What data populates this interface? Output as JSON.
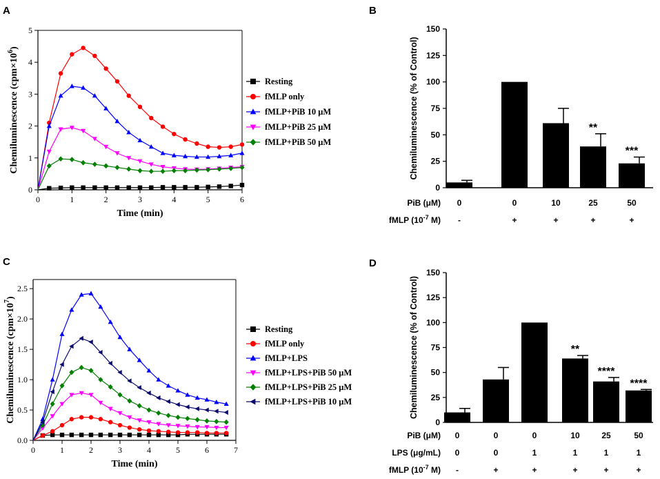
{
  "chart_data": [
    {
      "id": "A",
      "type": "line",
      "panel_label": "A",
      "title": "",
      "xlabel": "Time (min)",
      "ylabel": "Chemiluminescence (cpm×10",
      "ylabel_exp": "6",
      "ylabel_close": ")",
      "xlim": [
        0,
        6
      ],
      "ylim": [
        0,
        5
      ],
      "xticks": [
        "0",
        "1",
        "2",
        "3",
        "4",
        "5",
        "6"
      ],
      "xtick_values": [
        0,
        1,
        2,
        3,
        4,
        5,
        6
      ],
      "yticks": [
        "0",
        "1",
        "2",
        "3",
        "4",
        "5"
      ],
      "ytick_values": [
        0,
        1,
        2,
        3,
        4,
        5
      ],
      "x": [
        0,
        0.33,
        0.67,
        1.0,
        1.33,
        1.67,
        2.0,
        2.33,
        2.67,
        3.0,
        3.33,
        3.67,
        4.0,
        4.33,
        4.67,
        5.0,
        5.33,
        5.67,
        6.0
      ],
      "series": [
        {
          "name": "Resting",
          "color": "#000000",
          "marker": "square",
          "values": [
            0.0,
            0.05,
            0.06,
            0.07,
            0.07,
            0.07,
            0.07,
            0.07,
            0.07,
            0.07,
            0.07,
            0.08,
            0.08,
            0.08,
            0.08,
            0.09,
            0.1,
            0.12,
            0.15
          ]
        },
        {
          "name": "fMLP only",
          "color": "#ff0000",
          "marker": "circle",
          "values": [
            0.0,
            2.1,
            3.65,
            4.25,
            4.45,
            4.2,
            3.8,
            3.4,
            2.95,
            2.6,
            2.25,
            1.98,
            1.75,
            1.58,
            1.45,
            1.35,
            1.33,
            1.35,
            1.42
          ]
        },
        {
          "name": "fMLP+PiB 10 μM",
          "color": "#0000ff",
          "marker": "triangle-up",
          "values": [
            0.0,
            2.0,
            2.95,
            3.25,
            3.2,
            2.95,
            2.55,
            2.15,
            1.8,
            1.55,
            1.35,
            1.15,
            1.08,
            1.05,
            1.03,
            1.03,
            1.05,
            1.08,
            1.15
          ]
        },
        {
          "name": "fMLP+PiB 25 μM",
          "color": "#ff00ff",
          "marker": "triangle-down",
          "values": [
            0.0,
            1.2,
            1.9,
            1.95,
            1.85,
            1.6,
            1.35,
            1.15,
            1.0,
            0.9,
            0.8,
            0.72,
            0.68,
            0.65,
            0.64,
            0.65,
            0.67,
            0.7,
            0.72
          ]
        },
        {
          "name": "fMLP+PiB 50 μM",
          "color": "#008000",
          "marker": "diamond",
          "values": [
            0.0,
            0.75,
            0.97,
            0.95,
            0.85,
            0.8,
            0.75,
            0.7,
            0.65,
            0.6,
            0.58,
            0.58,
            0.6,
            0.6,
            0.62,
            0.63,
            0.65,
            0.67,
            0.7
          ]
        }
      ]
    },
    {
      "id": "B",
      "type": "bar",
      "panel_label": "B",
      "title": "",
      "xlabel": "",
      "ylabel": "Chemiluminescence (% of Control)",
      "ylim": [
        0,
        150
      ],
      "yticks": [
        "0",
        "25",
        "50",
        "75",
        "100",
        "125",
        "150"
      ],
      "ytick_values": [
        0,
        25,
        50,
        75,
        100,
        125,
        150
      ],
      "values": [
        5,
        100,
        61,
        39,
        23
      ],
      "errors": [
        2,
        0,
        14,
        12,
        6
      ],
      "significance": [
        "",
        "",
        "",
        "**",
        "***"
      ],
      "table_rows": [
        {
          "label": "PiB (μM)",
          "cells": [
            "0",
            "0",
            "10",
            "25",
            "50"
          ]
        },
        {
          "label": "fMLP (10",
          "label_exp": "-7",
          "label_tail": " M)",
          "cells": [
            "-",
            "+",
            "+",
            "+",
            "+"
          ]
        }
      ]
    },
    {
      "id": "C",
      "type": "line",
      "panel_label": "C",
      "title": "",
      "xlabel": "Time (min)",
      "ylabel": "Chemiluminescence (cpm×10",
      "ylabel_exp": "7",
      "ylabel_close": ")",
      "xlim": [
        0,
        7
      ],
      "ylim": [
        0,
        2.65
      ],
      "xticks": [
        "0",
        "1",
        "2",
        "3",
        "4",
        "5",
        "6",
        "7"
      ],
      "xtick_values": [
        0,
        1,
        2,
        3,
        4,
        5,
        6,
        7
      ],
      "yticks": [
        "0.0",
        "0.5",
        "1.0",
        "1.5",
        "2.0",
        "2.5"
      ],
      "ytick_values": [
        0,
        0.5,
        1.0,
        1.5,
        2.0,
        2.5
      ],
      "x": [
        0,
        0.33,
        0.67,
        1.0,
        1.33,
        1.67,
        2.0,
        2.33,
        2.67,
        3.0,
        3.33,
        3.67,
        4.0,
        4.33,
        4.67,
        5.0,
        5.33,
        5.67,
        6.0,
        6.33,
        6.67
      ],
      "series": [
        {
          "name": "Resting",
          "color": "#000000",
          "marker": "square",
          "values": [
            0.0,
            0.08,
            0.09,
            0.09,
            0.09,
            0.09,
            0.09,
            0.09,
            0.09,
            0.09,
            0.09,
            0.09,
            0.09,
            0.09,
            0.09,
            0.09,
            0.1,
            0.1,
            0.1,
            0.1,
            0.1
          ]
        },
        {
          "name": "fMLP only",
          "color": "#ff0000",
          "marker": "circle",
          "values": [
            0.0,
            0.08,
            0.15,
            0.25,
            0.35,
            0.38,
            0.38,
            0.35,
            0.3,
            0.25,
            0.21,
            0.18,
            0.16,
            0.15,
            0.14,
            0.13,
            0.13,
            0.13,
            0.12,
            0.12,
            0.12
          ]
        },
        {
          "name": "fMLP+LPS",
          "color": "#0000ff",
          "marker": "triangle-up",
          "values": [
            0.0,
            0.35,
            1.0,
            1.75,
            2.15,
            2.4,
            2.42,
            2.2,
            1.95,
            1.7,
            1.5,
            1.32,
            1.15,
            1.0,
            0.9,
            0.82,
            0.75,
            0.7,
            0.67,
            0.63,
            0.6
          ]
        },
        {
          "name": "fMLP+LPS+PiB 50 μM",
          "color": "#ff00ff",
          "marker": "triangle-down",
          "values": [
            0.0,
            0.2,
            0.4,
            0.6,
            0.75,
            0.78,
            0.75,
            0.62,
            0.52,
            0.45,
            0.38,
            0.33,
            0.3,
            0.27,
            0.25,
            0.24,
            0.23,
            0.22,
            0.22,
            0.21,
            0.21
          ]
        },
        {
          "name": "fMLP+LPS+PiB 25 μM",
          "color": "#008000",
          "marker": "diamond",
          "values": [
            0.0,
            0.25,
            0.6,
            0.9,
            1.12,
            1.2,
            1.15,
            1.0,
            0.88,
            0.75,
            0.65,
            0.57,
            0.5,
            0.45,
            0.41,
            0.38,
            0.36,
            0.34,
            0.32,
            0.31,
            0.3
          ]
        },
        {
          "name": "fMLP+LPS+PiB 10 μM",
          "color": "#0a0a6e",
          "marker": "triangle-left",
          "values": [
            0.0,
            0.3,
            0.8,
            1.25,
            1.55,
            1.68,
            1.62,
            1.45,
            1.27,
            1.12,
            0.98,
            0.87,
            0.78,
            0.7,
            0.64,
            0.59,
            0.55,
            0.52,
            0.5,
            0.48,
            0.46
          ]
        }
      ]
    },
    {
      "id": "D",
      "type": "bar",
      "panel_label": "D",
      "title": "",
      "xlabel": "",
      "ylabel": "Chemiluminescence (% of Control)",
      "ylim": [
        0,
        150
      ],
      "yticks": [
        "0",
        "25",
        "50",
        "75",
        "100",
        "125",
        "150"
      ],
      "ytick_values": [
        0,
        25,
        50,
        75,
        100,
        125,
        150
      ],
      "values": [
        10,
        43,
        100,
        64,
        41,
        32
      ],
      "errors": [
        4,
        12,
        0,
        3,
        4,
        1
      ],
      "significance": [
        "",
        "",
        "",
        "**",
        "****",
        "****"
      ],
      "table_rows": [
        {
          "label": "PiB (μM)",
          "cells": [
            "0",
            "0",
            "0",
            "10",
            "25",
            "50"
          ]
        },
        {
          "label": "LPS (μg/mL)",
          "cells": [
            "0",
            "0",
            "1",
            "1",
            "1",
            "1"
          ]
        },
        {
          "label": "fMLP (10",
          "label_exp": "-7",
          "label_tail": " M)",
          "cells": [
            "-",
            "+",
            "+",
            "+",
            "+",
            "+"
          ]
        }
      ]
    }
  ]
}
